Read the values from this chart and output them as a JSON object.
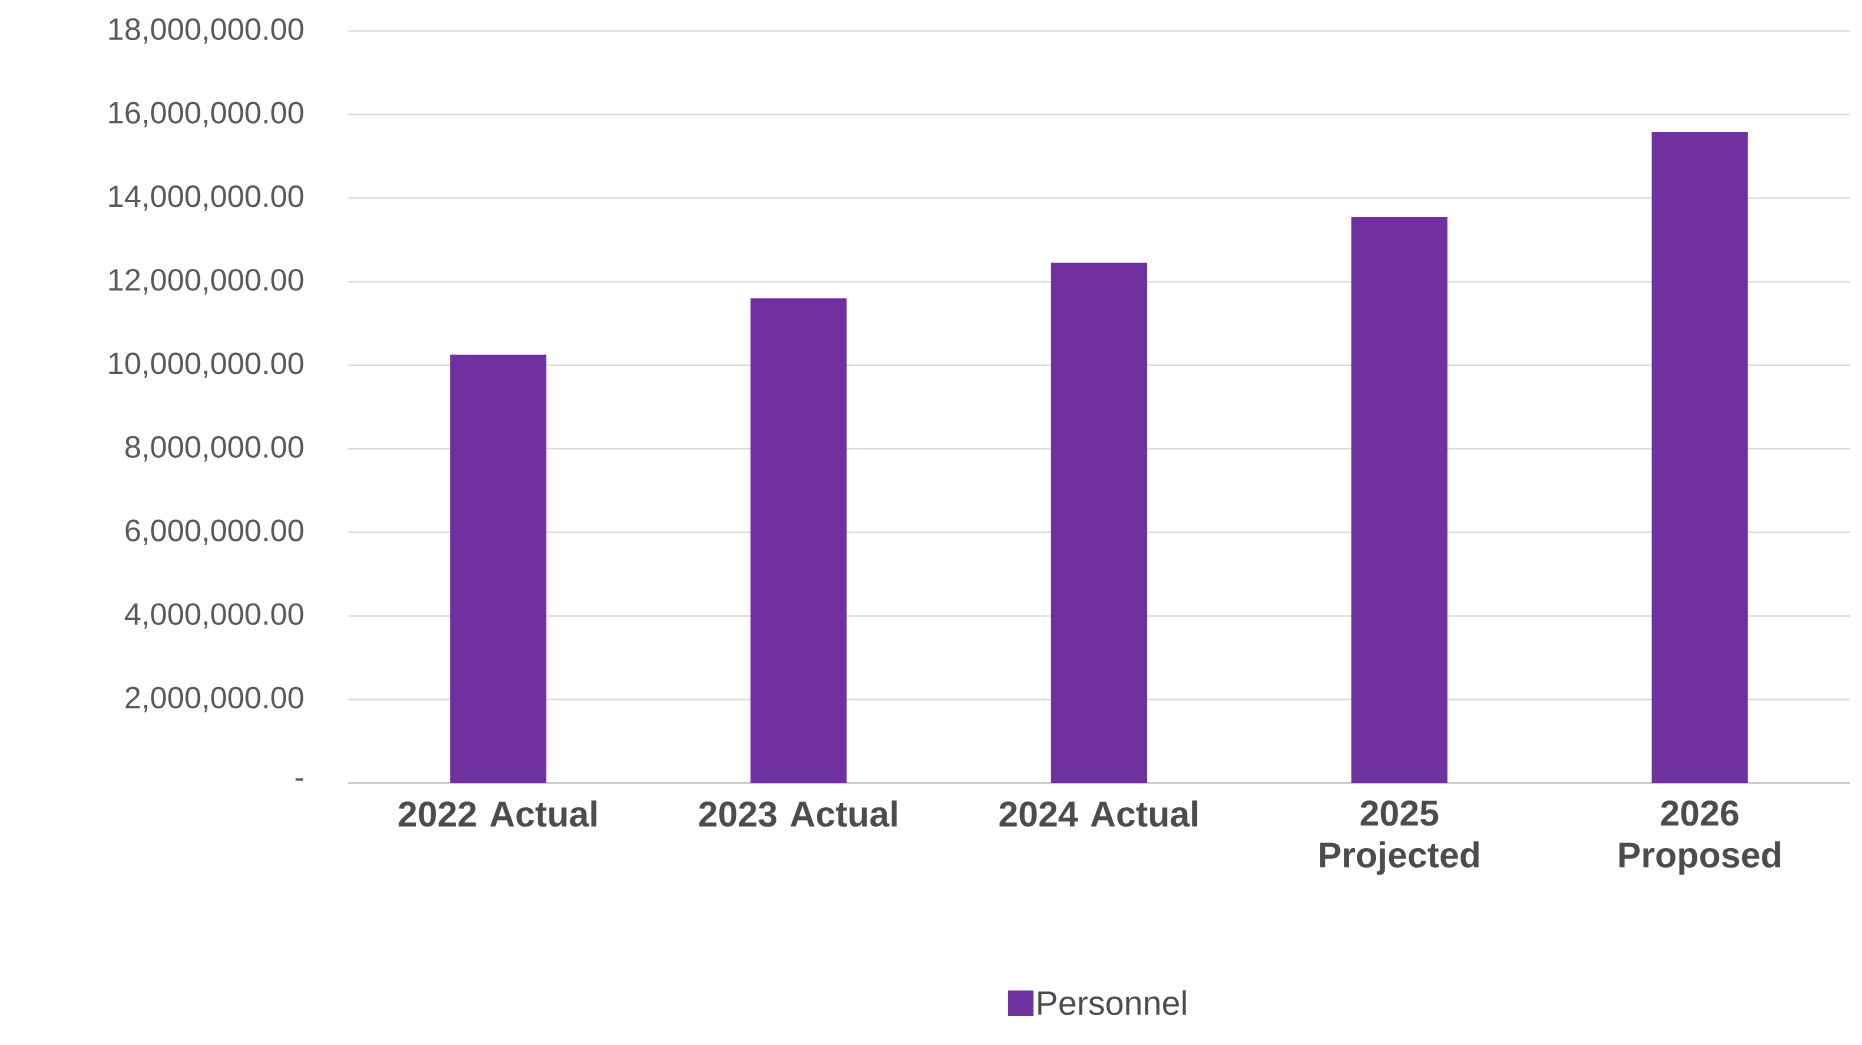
{
  "chart_data": {
    "type": "bar",
    "categories": [
      "2022 Actual",
      "2023 Actual",
      "2024 Actual",
      "2025 Projected",
      "2026 Proposed"
    ],
    "series": [
      {
        "name": "Personnel",
        "color": "#7030a0",
        "values": [
          10250000,
          11600000,
          12450000,
          13550000,
          15580000
        ]
      }
    ],
    "ylim": [
      0,
      18000000
    ],
    "yticks": [
      {
        "value": 0,
        "label": "-"
      },
      {
        "value": 2000000,
        "label": "2,000,000.00"
      },
      {
        "value": 4000000,
        "label": "4,000,000.00"
      },
      {
        "value": 6000000,
        "label": "6,000,000.00"
      },
      {
        "value": 8000000,
        "label": "8,000,000.00"
      },
      {
        "value": 10000000,
        "label": "10,000,000.00"
      },
      {
        "value": 12000000,
        "label": "12,000,000.00"
      },
      {
        "value": 14000000,
        "label": "14,000,000.00"
      },
      {
        "value": 16000000,
        "label": "16,000,000.00"
      },
      {
        "value": 18000000,
        "label": "18,000,000.00"
      }
    ],
    "grid": "y",
    "legend": "bottom"
  }
}
